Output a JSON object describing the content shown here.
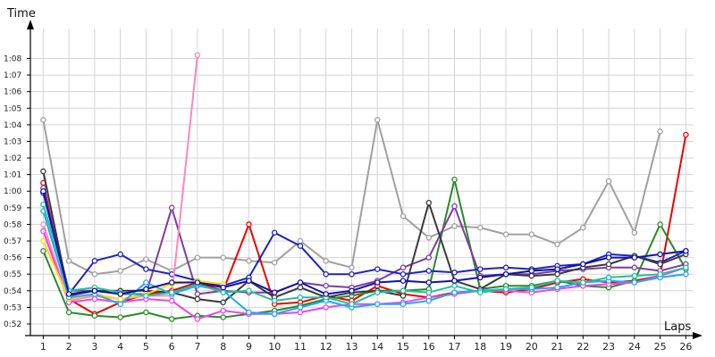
{
  "chart_data": {
    "type": "line",
    "title": "",
    "xlabel": "Laps",
    "ylabel": "Time",
    "x": [
      1,
      2,
      3,
      4,
      5,
      6,
      7,
      8,
      9,
      10,
      11,
      12,
      13,
      14,
      15,
      16,
      17,
      18,
      19,
      20,
      21,
      22,
      23,
      24,
      25,
      26
    ],
    "y_ticks": [
      {
        "v": 52,
        "label": "0:52"
      },
      {
        "v": 53,
        "label": "0:53"
      },
      {
        "v": 54,
        "label": "0:54"
      },
      {
        "v": 55,
        "label": "0:55"
      },
      {
        "v": 56,
        "label": "0:56"
      },
      {
        "v": 57,
        "label": "0:57"
      },
      {
        "v": 58,
        "label": "0:58"
      },
      {
        "v": 59,
        "label": "0:59"
      },
      {
        "v": 60,
        "label": "1:00"
      },
      {
        "v": 61,
        "label": "1:01"
      },
      {
        "v": 62,
        "label": "1:02"
      },
      {
        "v": 63,
        "label": "1:03"
      },
      {
        "v": 64,
        "label": "1:04"
      },
      {
        "v": 65,
        "label": "1:05"
      },
      {
        "v": 66,
        "label": "1:06"
      },
      {
        "v": 67,
        "label": "1:07"
      },
      {
        "v": 68,
        "label": "1:08"
      }
    ],
    "y_unit": "seconds",
    "ylim": [
      51.3,
      69.8
    ],
    "xlim": [
      0.5,
      26.3
    ],
    "grid": true,
    "series": [
      {
        "color": "#a0a0a0",
        "values": [
          64.3,
          55.8,
          55.0,
          55.2,
          55.9,
          55.2,
          56.0,
          56.0,
          55.8,
          55.7,
          57.0,
          55.8,
          55.4,
          64.3,
          58.5,
          57.2,
          57.9,
          57.8,
          57.4,
          57.4,
          56.8,
          57.8,
          60.6,
          57.5,
          63.6,
          null
        ]
      },
      {
        "color": "#ee0000",
        "values": [
          60.5,
          53.5,
          52.6,
          53.3,
          53.8,
          54.0,
          54.5,
          54.0,
          58.0,
          53.2,
          53.3,
          53.7,
          53.4,
          54.3,
          53.8,
          53.6,
          53.9,
          54.0,
          53.9,
          54.1,
          54.5,
          54.7,
          54.5,
          54.6,
          54.9,
          63.4
        ]
      },
      {
        "color": "#2a8a2a",
        "values": [
          56.4,
          52.7,
          52.5,
          52.4,
          52.7,
          52.3,
          52.5,
          52.4,
          52.6,
          52.8,
          53.1,
          53.5,
          53.7,
          54.0,
          54.0,
          54.1,
          60.7,
          54.1,
          54.3,
          54.3,
          54.6,
          54.3,
          54.2,
          54.6,
          58.0,
          55.3
        ]
      },
      {
        "color": "#7b3fa0",
        "values": [
          60.2,
          54.0,
          54.0,
          53.8,
          53.8,
          59.0,
          53.8,
          54.0,
          53.9,
          53.9,
          54.5,
          54.3,
          54.2,
          54.6,
          55.4,
          56.0,
          59.1,
          54.9,
          55.0,
          55.0,
          55.2,
          55.3,
          55.4,
          55.4,
          55.2,
          55.6
        ]
      },
      {
        "color": "#2222bb",
        "values": [
          59.9,
          53.8,
          55.8,
          56.2,
          55.3,
          55.0,
          54.6,
          54.3,
          54.8,
          57.5,
          56.7,
          55.0,
          55.0,
          55.3,
          55.0,
          55.2,
          55.1,
          55.3,
          55.4,
          55.3,
          55.5,
          55.6,
          56.2,
          56.1,
          55.7,
          56.4
        ]
      },
      {
        "color": "#3a3a3a",
        "values": [
          61.2,
          53.7,
          54.0,
          54.0,
          54.0,
          53.9,
          53.5,
          53.3,
          54.6,
          53.6,
          54.2,
          53.6,
          53.9,
          54.0,
          53.7,
          59.3,
          54.6,
          54.1,
          55.0,
          54.9,
          55.0,
          55.4,
          55.6,
          56.1,
          55.6,
          56.2
        ]
      },
      {
        "color": "#ff88bb",
        "values": [
          58.0,
          53.4,
          53.7,
          53.5,
          53.7,
          53.7,
          68.2,
          null,
          null,
          null,
          null,
          null,
          null,
          null,
          null,
          null,
          null,
          null,
          null,
          null,
          null,
          null,
          null,
          null,
          null,
          null
        ]
      },
      {
        "color": "#ee44ee",
        "values": [
          57.6,
          53.3,
          53.5,
          53.3,
          53.5,
          53.4,
          52.3,
          52.8,
          52.6,
          52.6,
          52.7,
          53.0,
          53.2,
          53.2,
          53.3,
          53.6,
          53.8,
          54.0,
          54.0,
          53.9,
          54.1,
          54.3,
          54.4,
          54.5,
          54.9,
          55.4
        ]
      },
      {
        "color": "#ffdd00",
        "values": [
          57.0,
          53.5,
          53.8,
          53.5,
          53.8,
          54.4,
          54.6,
          54.4,
          null,
          null,
          null,
          null,
          null,
          null,
          null,
          null,
          null,
          null,
          null,
          null,
          null,
          null,
          null,
          null,
          null,
          null
        ]
      },
      {
        "color": "#22aaee",
        "values": [
          58.8,
          53.6,
          53.8,
          53.2,
          54.5,
          53.8,
          54.3,
          54.0,
          52.7,
          52.6,
          53.0,
          53.4,
          53.0,
          53.2,
          53.2,
          53.4,
          53.9,
          54.0,
          54.1,
          54.1,
          54.2,
          54.5,
          54.6,
          54.5,
          54.8,
          55.0
        ]
      },
      {
        "color": "#22c0a0",
        "values": [
          59.2,
          54.0,
          54.2,
          53.9,
          53.7,
          53.9,
          54.4,
          53.9,
          54.0,
          53.4,
          53.6,
          53.6,
          53.2,
          53.9,
          54.0,
          53.9,
          54.3,
          53.9,
          54.1,
          54.2,
          54.6,
          54.5,
          54.8,
          54.9,
          55.0,
          55.4
        ]
      },
      {
        "color": "#1111aa",
        "values": [
          60.0,
          53.8,
          54.0,
          53.8,
          54.1,
          54.5,
          54.5,
          54.2,
          54.6,
          53.9,
          54.5,
          53.8,
          54.0,
          54.5,
          54.6,
          54.5,
          54.6,
          54.8,
          55.0,
          55.2,
          55.3,
          55.6,
          56.0,
          56.0,
          56.2,
          56.4
        ]
      }
    ]
  }
}
